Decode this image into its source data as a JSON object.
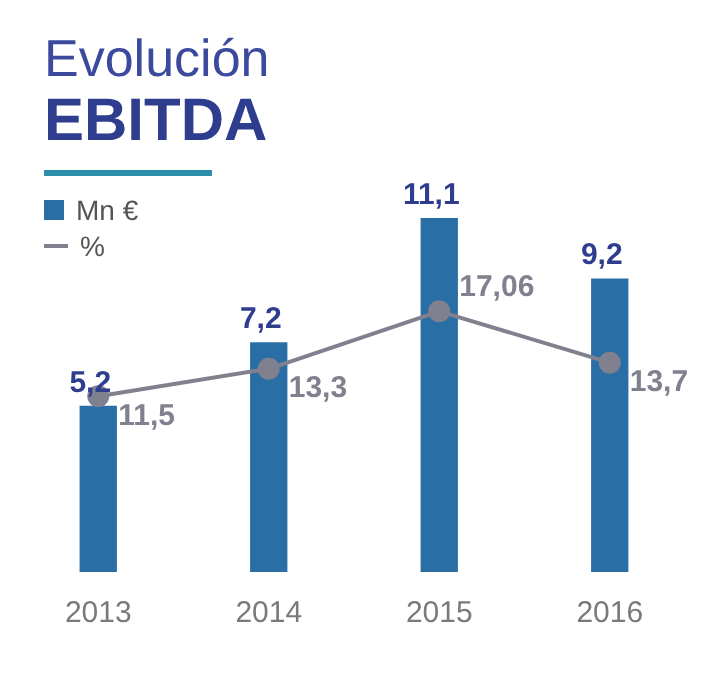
{
  "chart_data": {
    "type": "bar",
    "title": "Evolución",
    "subtitle": "EBITDA",
    "categories": [
      "2013",
      "2014",
      "2015",
      "2016"
    ],
    "series": [
      {
        "name": "Mn €",
        "color": "#2a6ea6",
        "values": [
          5.2,
          7.2,
          11.1,
          9.2
        ],
        "value_labels": [
          "5,2",
          "7,2",
          "11,1",
          "9,2"
        ]
      },
      {
        "name": "%",
        "type": "line",
        "axis": "y2",
        "color": "#80808f",
        "values": [
          11.5,
          13.3,
          17.06,
          13.7
        ],
        "value_labels": [
          "11,5",
          "13,3",
          "17,06",
          "13,7"
        ]
      }
    ],
    "tick_labels": "x",
    "grid": false,
    "legend": "top left",
    "marker": "circle",
    "line_style": "solid"
  }
}
